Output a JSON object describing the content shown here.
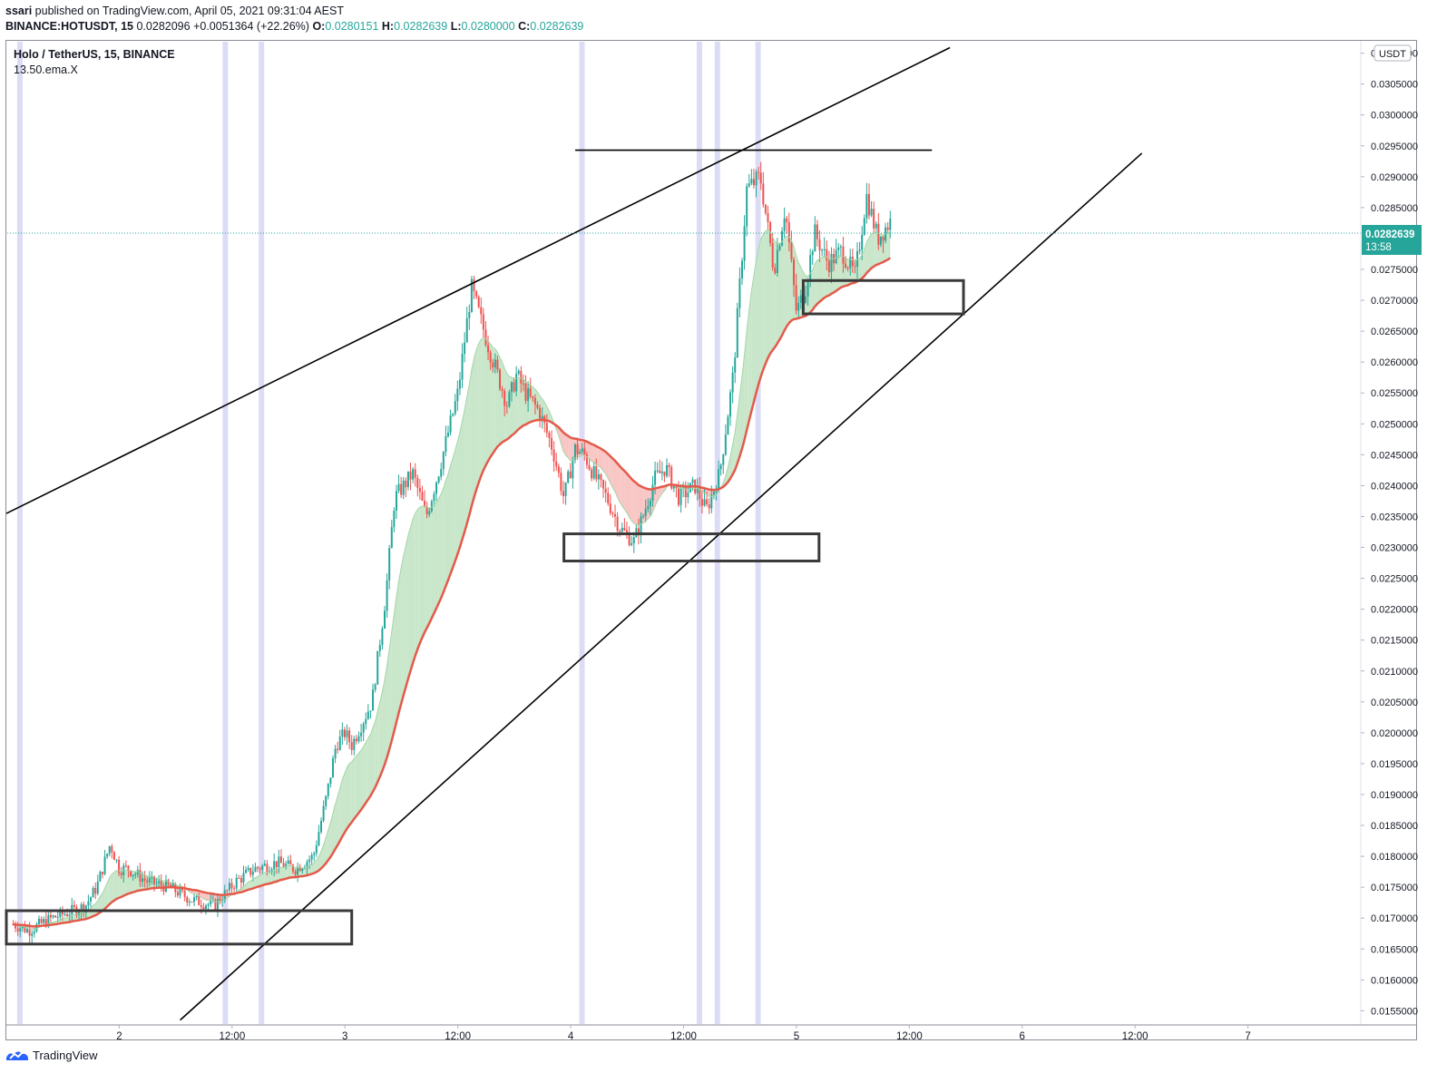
{
  "header": {
    "published_by": "ssari",
    "published_rest": " published on TradingView.com, April 05, 2021 09:31:04 AEST",
    "symbol_line": "BINANCE:HOTUSDT, 15",
    "last": "0.0282096",
    "change": "+0.0051364 (+22.26%)",
    "o_label": "O:",
    "o_value": "0.0280151",
    "h_label": "H:",
    "h_value": "0.0282639",
    "l_label": "L:",
    "l_value": "0.0280000",
    "c_label": "C:",
    "c_value": "0.0282639"
  },
  "legend": {
    "title": "Holo / TetherUS, 15, BINANCE",
    "indicator": "13.50.ema.X"
  },
  "price_scale": {
    "currency": "USDT",
    "current_price": "0.0282639",
    "countdown": "13:58"
  },
  "footer": {
    "brand": "TradingView"
  },
  "colors": {
    "up": "#26a69a",
    "down": "#ef5350",
    "ema_slow": "#e45a4a",
    "fill_up": "#c8e6c9",
    "fill_down": "#f8c6c4",
    "session_band": "#dcdcf6",
    "price_line": "#26a69a"
  },
  "chart_data": {
    "type": "line",
    "title": "Holo / TetherUS, 15, BINANCE",
    "symbol": "BINANCE:HOTUSDT",
    "interval": "15",
    "xlabel": "",
    "ylabel": "",
    "x_tick_labels": [
      "2",
      "12:00",
      "3",
      "12:00",
      "4",
      "12:00",
      "5",
      "12:00",
      "6",
      "12:00",
      "7"
    ],
    "y_tick_labels": [
      "0.0310000",
      "0.0305000",
      "0.0300000",
      "0.0295000",
      "0.0290000",
      "0.0285000",
      "0.0275000",
      "0.0270000",
      "0.0265000",
      "0.0260000",
      "0.0255000",
      "0.0250000",
      "0.0245000",
      "0.0240000",
      "0.0235000",
      "0.0230000",
      "0.0225000",
      "0.0220000",
      "0.0215000",
      "0.0210000",
      "0.0205000",
      "0.0200000",
      "0.0195000",
      "0.0190000",
      "0.0185000",
      "0.0180000",
      "0.0175000",
      "0.0170000",
      "0.0165000",
      "0.0160000",
      "0.0155000"
    ],
    "ylim": [
      0.0153,
      0.0312
    ],
    "x_domain_days": [
      1.5,
      7.5
    ],
    "price_estimate": {
      "x_day": [
        1.53,
        1.6,
        1.7,
        1.78,
        1.85,
        1.9,
        1.96,
        2.0,
        2.04,
        2.12,
        2.22,
        2.32,
        2.42,
        2.52,
        2.6,
        2.7,
        2.78,
        2.86,
        2.92,
        2.96,
        3.0,
        3.03,
        3.12,
        3.18,
        3.22,
        3.3,
        3.36,
        3.42,
        3.5,
        3.56,
        3.64,
        3.72,
        3.76,
        3.8,
        3.86,
        3.92,
        3.97,
        4.02,
        4.06,
        4.1,
        4.16,
        4.22,
        4.28,
        4.32,
        4.37,
        4.42,
        4.48,
        4.55,
        4.6,
        4.66,
        4.72,
        4.78,
        4.84,
        4.9,
        4.95,
        5.0,
        5.04,
        5.08,
        5.14,
        5.2,
        5.26,
        5.31,
        5.36,
        5.42
      ],
      "close": [
        0.0169,
        0.0168,
        0.017,
        0.0171,
        0.0172,
        0.0175,
        0.0182,
        0.0178,
        0.0178,
        0.0176,
        0.0175,
        0.0173,
        0.0172,
        0.0176,
        0.0178,
        0.0179,
        0.0178,
        0.018,
        0.019,
        0.0198,
        0.02,
        0.0198,
        0.0205,
        0.0222,
        0.0238,
        0.0242,
        0.0235,
        0.0243,
        0.0255,
        0.0272,
        0.0262,
        0.0253,
        0.0258,
        0.0255,
        0.0252,
        0.0246,
        0.0238,
        0.0246,
        0.0245,
        0.0242,
        0.0238,
        0.0233,
        0.0231,
        0.0235,
        0.0241,
        0.0243,
        0.0238,
        0.024,
        0.0236,
        0.0242,
        0.0258,
        0.0288,
        0.029,
        0.0275,
        0.0285,
        0.0268,
        0.0272,
        0.0281,
        0.0276,
        0.0278,
        0.0274,
        0.0287,
        0.028,
        0.0283
      ]
    },
    "series": [
      {
        "name": "13.50.ema.X",
        "type": "line"
      }
    ],
    "annotations": {
      "trend_lines": [
        {
          "from": [
            1.5,
            0.02355
          ],
          "to": [
            5.68,
            0.03109
          ]
        },
        {
          "from": [
            2.27,
            0.01535
          ],
          "to": [
            6.53,
            0.02938
          ]
        },
        {
          "from": [
            4.02,
            0.02943
          ],
          "to": [
            5.6,
            0.02943
          ]
        }
      ],
      "rectangles": [
        {
          "x": [
            1.5,
            3.03
          ],
          "y": [
            0.01658,
            0.01712
          ]
        },
        {
          "x": [
            3.97,
            5.1
          ],
          "y": [
            0.02278,
            0.02322
          ]
        },
        {
          "x": [
            5.03,
            5.74
          ],
          "y": [
            0.02678,
            0.02732
          ]
        }
      ],
      "session_bands_days": [
        1.56,
        2.47,
        2.63,
        4.05,
        4.57,
        4.65,
        4.83
      ]
    },
    "current_price": 0.0282639,
    "grid": false,
    "legend_position": "top-left"
  }
}
